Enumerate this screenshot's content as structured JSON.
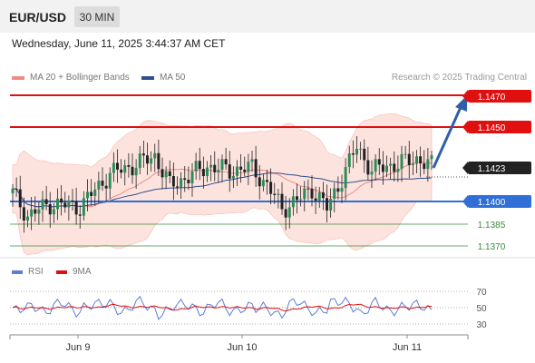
{
  "header": {
    "symbol": "EUR/USD",
    "timeframe": "30 MIN",
    "datetime": "Wednesday, June 11, 2025 3:44:37 AM CET"
  },
  "legend": {
    "ma20_label": "MA 20 + Bollinger Bands",
    "ma50_label": "MA 50",
    "research": "Research © 2025 Trading Central",
    "colors": {
      "ma20": "#f08c84",
      "ma50": "#2f4f8f"
    }
  },
  "price_levels": [
    {
      "value": "1.1470",
      "color": "#e01010",
      "style": "resistance"
    },
    {
      "value": "1.1450",
      "color": "#e01010",
      "style": "resistance"
    },
    {
      "value": "1.1423",
      "color": "#222222",
      "style": "current"
    },
    {
      "value": "1.1400",
      "color": "#2f6fd6",
      "style": "pivot"
    },
    {
      "value": "1.1385",
      "color": "#3a8a3a",
      "style": "support"
    },
    {
      "value": "1.1370",
      "color": "#3a8a3a",
      "style": "support"
    }
  ],
  "rsi": {
    "rsi_label": "RSI",
    "ma_label": "9MA",
    "levels": [
      "70",
      "50",
      "30"
    ],
    "colors": {
      "rsi": "#5b7fd6",
      "ma": "#e01010"
    }
  },
  "xaxis": {
    "labels": [
      "Jun 9",
      "Jun 10",
      "Jun 11"
    ]
  },
  "chart_data": {
    "type": "candlestick",
    "symbol": "EUR/USD",
    "timeframe": "30 MIN",
    "x_labels": [
      "Jun 9",
      "Jun 10",
      "Jun 11"
    ],
    "price_range": [
      1.1365,
      1.1475
    ],
    "levels": [
      1.147,
      1.145,
      1.1423,
      1.14,
      1.1385,
      1.137
    ],
    "current_price": 1.1423,
    "key_points": [
      {
        "t": 0,
        "close": 1.1405
      },
      {
        "t": 4,
        "close": 1.139
      },
      {
        "t": 10,
        "close": 1.1398
      },
      {
        "t": 18,
        "close": 1.1396
      },
      {
        "t": 26,
        "close": 1.1418
      },
      {
        "t": 34,
        "close": 1.1425
      },
      {
        "t": 38,
        "close": 1.143
      },
      {
        "t": 42,
        "close": 1.141
      },
      {
        "t": 46,
        "close": 1.1415
      },
      {
        "t": 52,
        "close": 1.1423
      },
      {
        "t": 58,
        "close": 1.142
      },
      {
        "t": 64,
        "close": 1.1422
      },
      {
        "t": 68,
        "close": 1.141
      },
      {
        "t": 72,
        "close": 1.1395
      },
      {
        "t": 76,
        "close": 1.14
      },
      {
        "t": 80,
        "close": 1.1408
      },
      {
        "t": 84,
        "close": 1.1395
      },
      {
        "t": 88,
        "close": 1.1415
      },
      {
        "t": 92,
        "close": 1.1436
      },
      {
        "t": 96,
        "close": 1.142
      },
      {
        "t": 100,
        "close": 1.1423
      },
      {
        "t": 104,
        "close": 1.1425
      },
      {
        "t": 108,
        "close": 1.1428
      },
      {
        "t": 112,
        "close": 1.1423
      }
    ],
    "forecast_target": 1.147,
    "rsi_range": [
      20,
      80
    ],
    "rsi_levels": [
      70,
      50,
      30
    ]
  }
}
